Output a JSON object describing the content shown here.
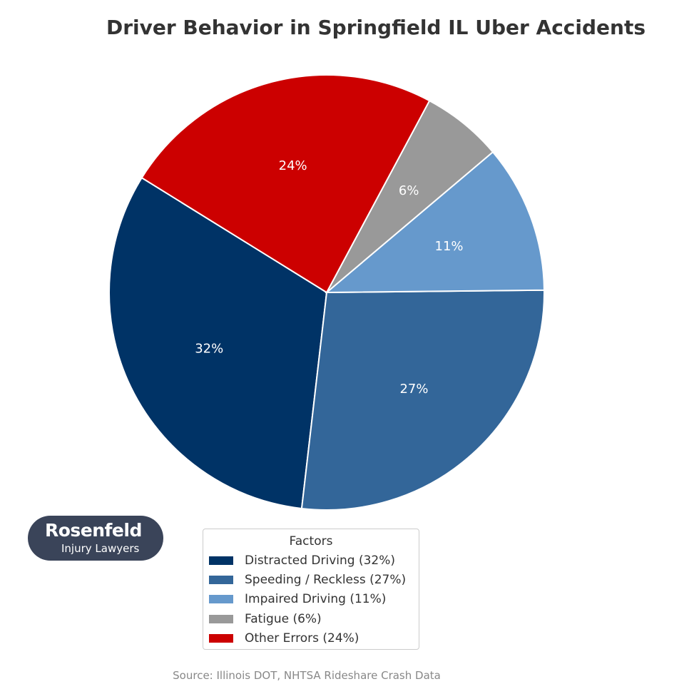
{
  "chart_data": {
    "type": "pie",
    "title": "Driver Behavior in Springfield IL Uber Accidents",
    "slices": [
      {
        "name": "Distracted Driving",
        "value": 32,
        "label": "32%",
        "legend": "Distracted Driving (32%)",
        "color": "#003366"
      },
      {
        "name": "Speeding / Reckless",
        "value": 27,
        "label": "27%",
        "legend": "Speeding / Reckless (27%)",
        "color": "#336699"
      },
      {
        "name": "Impaired Driving",
        "value": 11,
        "label": "11%",
        "legend": "Impaired Driving (11%)",
        "color": "#6699cc"
      },
      {
        "name": "Fatigue",
        "value": 6,
        "label": "6%",
        "legend": "Fatigue (6%)",
        "color": "#999999"
      },
      {
        "name": "Other Errors",
        "value": 24,
        "label": "24%",
        "legend": "Other Errors (24%)",
        "color": "#cc0000"
      }
    ],
    "legend": {
      "title": "Factors",
      "placement": "bottom-center"
    }
  },
  "source": "Source: Illinois DOT, NHTSA Rideshare Crash Data",
  "logo": {
    "brand": "Rosenfeld",
    "tagline": "Injury Lawyers"
  }
}
